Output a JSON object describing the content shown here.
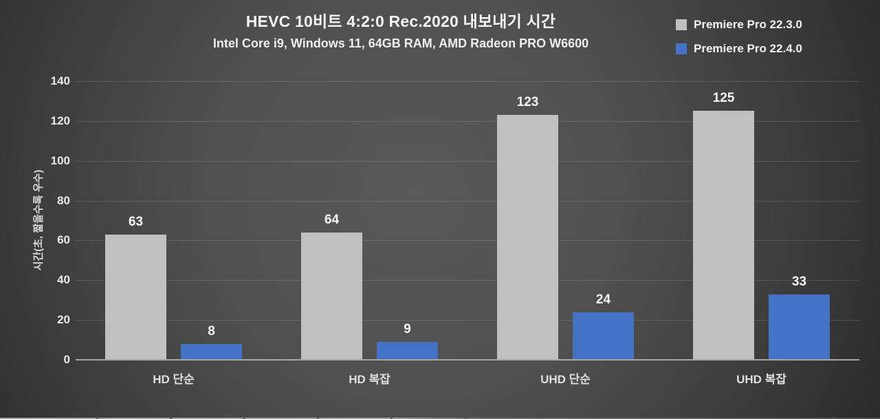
{
  "header": {
    "title": "HEVC 10비트 4:2:0 Rec.2020 내보내기 시간",
    "subtitle": "Intel Core i9, Windows 11, 64GB RAM, AMD Radeon PRO W6600"
  },
  "legend": [
    {
      "label": "Premiere Pro 22.3.0",
      "color": "#c0c0c0"
    },
    {
      "label": "Premiere Pro 22.4.0",
      "color": "#4472c4"
    }
  ],
  "colors": {
    "background_center": "#595959",
    "background_edge": "#262626",
    "gridline": "rgba(255,255,255,0.14)",
    "axis_line": "#a6a6a6",
    "label_text": "#f5f5f5"
  },
  "chart_data": {
    "type": "bar",
    "title": "HEVC 10비트 4:2:0 Rec.2020 내보내기 시간",
    "subtitle": "Intel Core i9, Windows 11, 64GB RAM, AMD Radeon PRO W6600",
    "categories": [
      "HD 단순",
      "HD 복잡",
      "UHD 단순",
      "UHD 복잡"
    ],
    "series": [
      {
        "name": "Premiere Pro 22.3.0",
        "color": "#c0c0c0",
        "values": [
          63,
          64,
          123,
          125
        ]
      },
      {
        "name": "Premiere Pro 22.4.0",
        "color": "#4472c4",
        "values": [
          8,
          9,
          24,
          33
        ]
      }
    ],
    "ylabel": "시간(초, 짧을수록 우수)",
    "xlabel": "",
    "ylim": [
      0,
      140
    ],
    "yticks": [
      0,
      20,
      40,
      60,
      80,
      100,
      120,
      140
    ],
    "grid": true,
    "data_labels": true,
    "legend_position": "top-right"
  }
}
